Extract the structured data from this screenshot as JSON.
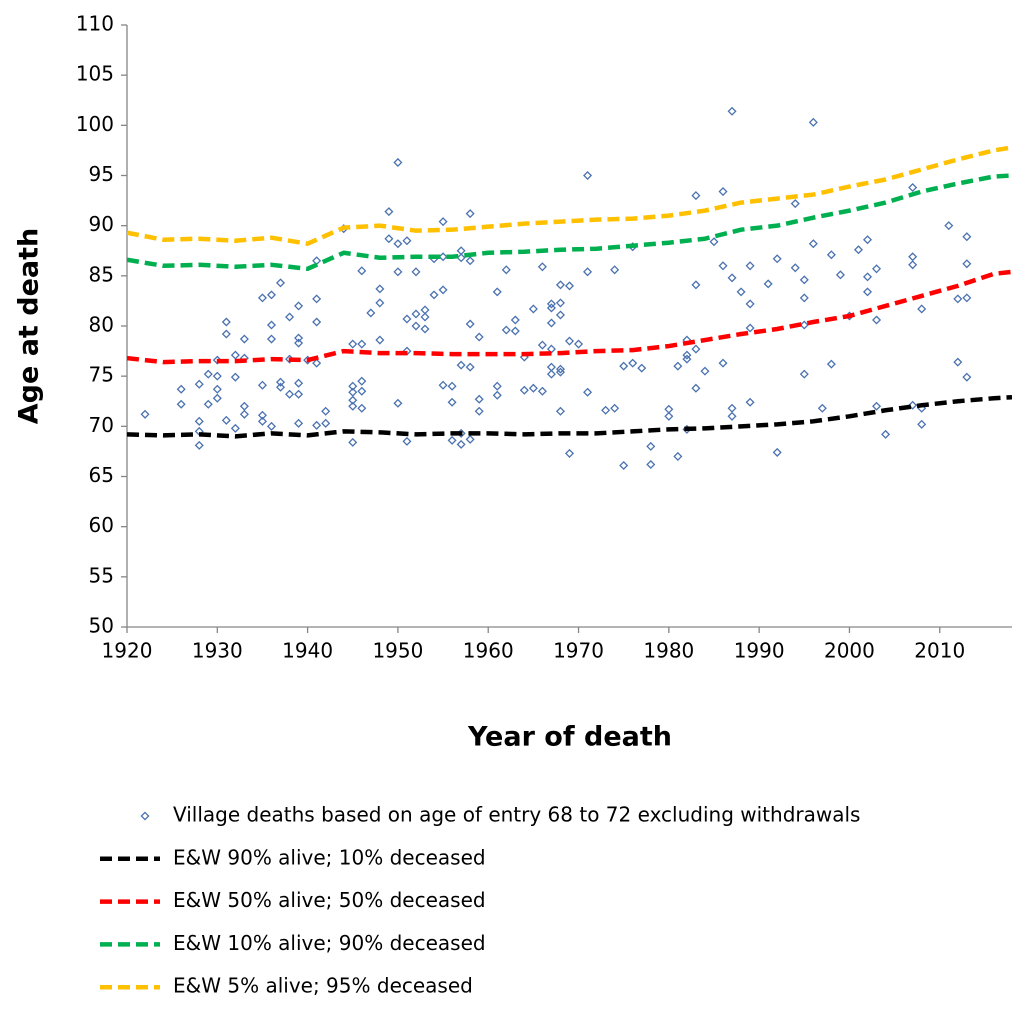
{
  "chart_data": {
    "type": "scatter",
    "x_label": "Year of death",
    "y_label": "Age at death",
    "xlim": [
      1920,
      2018
    ],
    "ylim": [
      50,
      110
    ],
    "xticks": [
      1920,
      1930,
      1940,
      1950,
      1960,
      1970,
      1980,
      1990,
      2000,
      2010
    ],
    "yticks": [
      50,
      55,
      60,
      65,
      70,
      75,
      80,
      85,
      90,
      95,
      100,
      105,
      110
    ],
    "series": [
      {
        "name": "Village deaths based on age of entry 68 to 72 excluding withdrawals",
        "type": "scatter",
        "color": "#4a72b0",
        "x": [
          1922,
          1926,
          1926,
          1928,
          1928,
          1928,
          1928,
          1929,
          1929,
          1930,
          1930,
          1930,
          1930,
          1931,
          1931,
          1931,
          1932,
          1932,
          1932,
          1933,
          1933,
          1933,
          1933,
          1935,
          1935,
          1935,
          1935,
          1936,
          1936,
          1936,
          1936,
          1937,
          1937,
          1937,
          1938,
          1938,
          1938,
          1939,
          1939,
          1939,
          1939,
          1939,
          1939,
          1940,
          1941,
          1941,
          1941,
          1941,
          1941,
          1942,
          1942,
          1944,
          1945,
          1945,
          1945,
          1945,
          1945,
          1945,
          1946,
          1946,
          1946,
          1946,
          1946,
          1947,
          1948,
          1948,
          1948,
          1949,
          1949,
          1950,
          1950,
          1950,
          1950,
          1951,
          1951,
          1951,
          1951,
          1952,
          1952,
          1952,
          1953,
          1953,
          1953,
          1954,
          1954,
          1955,
          1955,
          1955,
          1955,
          1956,
          1956,
          1956,
          1957,
          1957,
          1957,
          1957,
          1957,
          1958,
          1958,
          1958,
          1958,
          1958,
          1959,
          1959,
          1959,
          1961,
          1961,
          1961,
          1962,
          1962,
          1963,
          1963,
          1964,
          1964,
          1965,
          1965,
          1966,
          1966,
          1966,
          1967,
          1967,
          1967,
          1967,
          1967,
          1967,
          1968,
          1968,
          1968,
          1968,
          1968,
          1968,
          1969,
          1969,
          1969,
          1970,
          1971,
          1971,
          1971,
          1973,
          1974,
          1974,
          1975,
          1975,
          1976,
          1976,
          1977,
          1978,
          1978,
          1980,
          1980,
          1981,
          1981,
          1982,
          1982,
          1982,
          1982,
          1983,
          1983,
          1983,
          1983,
          1984,
          1985,
          1986,
          1986,
          1986,
          1987,
          1987,
          1987,
          1987,
          1988,
          1989,
          1989,
          1989,
          1989,
          1991,
          1992,
          1992,
          1994,
          1994,
          1995,
          1995,
          1995,
          1995,
          1996,
          1996,
          1997,
          1998,
          1998,
          1999,
          2000,
          2001,
          2002,
          2002,
          2002,
          2003,
          2003,
          2003,
          2004,
          2007,
          2007,
          2007,
          2007,
          2008,
          2008,
          2008,
          2011,
          2012,
          2012,
          2013,
          2013,
          2013,
          2013
        ],
        "values": [
          71.2,
          73.7,
          72.2,
          74.2,
          70.5,
          69.5,
          68.1,
          75.2,
          72.2,
          76.6,
          75.0,
          73.7,
          72.8,
          80.4,
          79.2,
          70.6,
          77.1,
          74.9,
          69.8,
          78.7,
          76.8,
          72.0,
          71.2,
          82.8,
          74.1,
          71.1,
          70.5,
          83.1,
          80.1,
          78.7,
          70.0,
          84.3,
          74.4,
          73.9,
          80.9,
          76.7,
          73.2,
          82.0,
          78.8,
          78.3,
          74.3,
          73.2,
          70.3,
          76.6,
          86.5,
          82.7,
          80.4,
          76.3,
          70.1,
          71.5,
          70.3,
          89.7,
          78.2,
          74.0,
          73.4,
          72.6,
          72.0,
          68.4,
          85.5,
          78.2,
          74.5,
          73.5,
          71.8,
          81.3,
          83.7,
          82.3,
          78.6,
          91.4,
          88.7,
          96.3,
          88.2,
          85.4,
          72.3,
          88.5,
          80.7,
          77.5,
          68.5,
          85.4,
          81.2,
          80.0,
          81.6,
          80.9,
          79.7,
          86.7,
          83.1,
          90.4,
          86.9,
          83.6,
          74.1,
          74.0,
          72.4,
          68.6,
          87.5,
          86.8,
          76.1,
          69.3,
          68.2,
          91.2,
          86.5,
          80.2,
          75.9,
          68.7,
          78.9,
          72.7,
          71.5,
          83.4,
          74.0,
          73.1,
          85.6,
          79.6,
          80.6,
          79.5,
          76.9,
          73.6,
          81.7,
          73.8,
          85.9,
          78.1,
          73.5,
          82.2,
          81.8,
          80.3,
          77.7,
          75.9,
          75.2,
          84.1,
          82.3,
          81.1,
          75.7,
          75.4,
          71.5,
          84.0,
          78.5,
          67.3,
          78.2,
          95.0,
          85.4,
          73.4,
          71.6,
          85.6,
          71.8,
          76.0,
          66.1,
          87.9,
          76.3,
          75.8,
          68.0,
          66.2,
          71.7,
          71.0,
          76.0,
          67.0,
          78.6,
          77.1,
          76.7,
          69.7,
          93.0,
          84.1,
          77.7,
          73.8,
          75.5,
          88.4,
          93.4,
          86.0,
          76.3,
          101.4,
          84.8,
          71.8,
          71.0,
          83.4,
          86.0,
          82.2,
          79.8,
          72.4,
          84.2,
          86.7,
          67.4,
          92.2,
          85.8,
          84.6,
          82.8,
          80.1,
          75.2,
          100.3,
          88.2,
          71.8,
          87.1,
          76.2,
          85.1,
          81.0,
          87.6,
          88.6,
          84.9,
          83.4,
          85.7,
          80.6,
          72.0,
          69.2,
          93.8,
          86.9,
          86.1,
          72.1,
          81.7,
          71.8,
          70.2,
          90.0,
          82.7,
          76.4,
          88.9,
          86.2,
          82.8,
          74.9
        ]
      },
      {
        "name": "E&W 90% alive; 10% deceased",
        "type": "line",
        "color": "#000000",
        "x": [
          1920,
          1924,
          1928,
          1932,
          1936,
          1940,
          1944,
          1948,
          1952,
          1956,
          1960,
          1964,
          1968,
          1972,
          1976,
          1980,
          1984,
          1988,
          1992,
          1996,
          2000,
          2004,
          2008,
          2012,
          2016,
          2018
        ],
        "values": [
          69.2,
          69.1,
          69.2,
          69.0,
          69.3,
          69.1,
          69.5,
          69.4,
          69.2,
          69.3,
          69.3,
          69.2,
          69.3,
          69.3,
          69.5,
          69.7,
          69.8,
          70.0,
          70.2,
          70.5,
          71.0,
          71.6,
          72.1,
          72.5,
          72.8,
          72.9
        ]
      },
      {
        "name": "E&W 50% alive; 50% deceased",
        "type": "line",
        "color": "#ff0000",
        "x": [
          1920,
          1924,
          1928,
          1932,
          1936,
          1940,
          1944,
          1948,
          1952,
          1956,
          1960,
          1964,
          1968,
          1972,
          1976,
          1980,
          1984,
          1988,
          1992,
          1996,
          2000,
          2004,
          2008,
          2012,
          2016,
          2018
        ],
        "values": [
          76.8,
          76.4,
          76.5,
          76.5,
          76.7,
          76.6,
          77.5,
          77.3,
          77.3,
          77.2,
          77.2,
          77.2,
          77.3,
          77.5,
          77.6,
          78.0,
          78.6,
          79.2,
          79.7,
          80.4,
          81.0,
          82.0,
          83.0,
          84.0,
          85.2,
          85.4
        ]
      },
      {
        "name": "E&W 10% alive; 90% deceased",
        "type": "line",
        "color": "#00b050",
        "x": [
          1920,
          1924,
          1928,
          1932,
          1936,
          1940,
          1944,
          1948,
          1952,
          1956,
          1960,
          1964,
          1968,
          1972,
          1976,
          1980,
          1984,
          1988,
          1992,
          1996,
          2000,
          2004,
          2008,
          2012,
          2016,
          2018
        ],
        "values": [
          86.6,
          86.0,
          86.1,
          85.9,
          86.1,
          85.7,
          87.3,
          86.8,
          86.9,
          86.9,
          87.3,
          87.4,
          87.6,
          87.7,
          88.0,
          88.3,
          88.7,
          89.6,
          90.0,
          90.8,
          91.5,
          92.3,
          93.4,
          94.2,
          94.9,
          95.0
        ]
      },
      {
        "name": "E&W 5% alive; 95% deceased",
        "type": "line",
        "color": "#ffc000",
        "x": [
          1920,
          1924,
          1928,
          1932,
          1936,
          1940,
          1944,
          1948,
          1952,
          1956,
          1960,
          1964,
          1968,
          1972,
          1976,
          1980,
          1984,
          1988,
          1992,
          1996,
          2000,
          2004,
          2008,
          2012,
          2016,
          2018
        ],
        "values": [
          89.3,
          88.6,
          88.7,
          88.5,
          88.8,
          88.2,
          89.8,
          90.0,
          89.5,
          89.6,
          89.9,
          90.2,
          90.4,
          90.6,
          90.7,
          91.0,
          91.5,
          92.3,
          92.7,
          93.1,
          93.9,
          94.6,
          95.6,
          96.6,
          97.5,
          97.8
        ]
      }
    ]
  }
}
